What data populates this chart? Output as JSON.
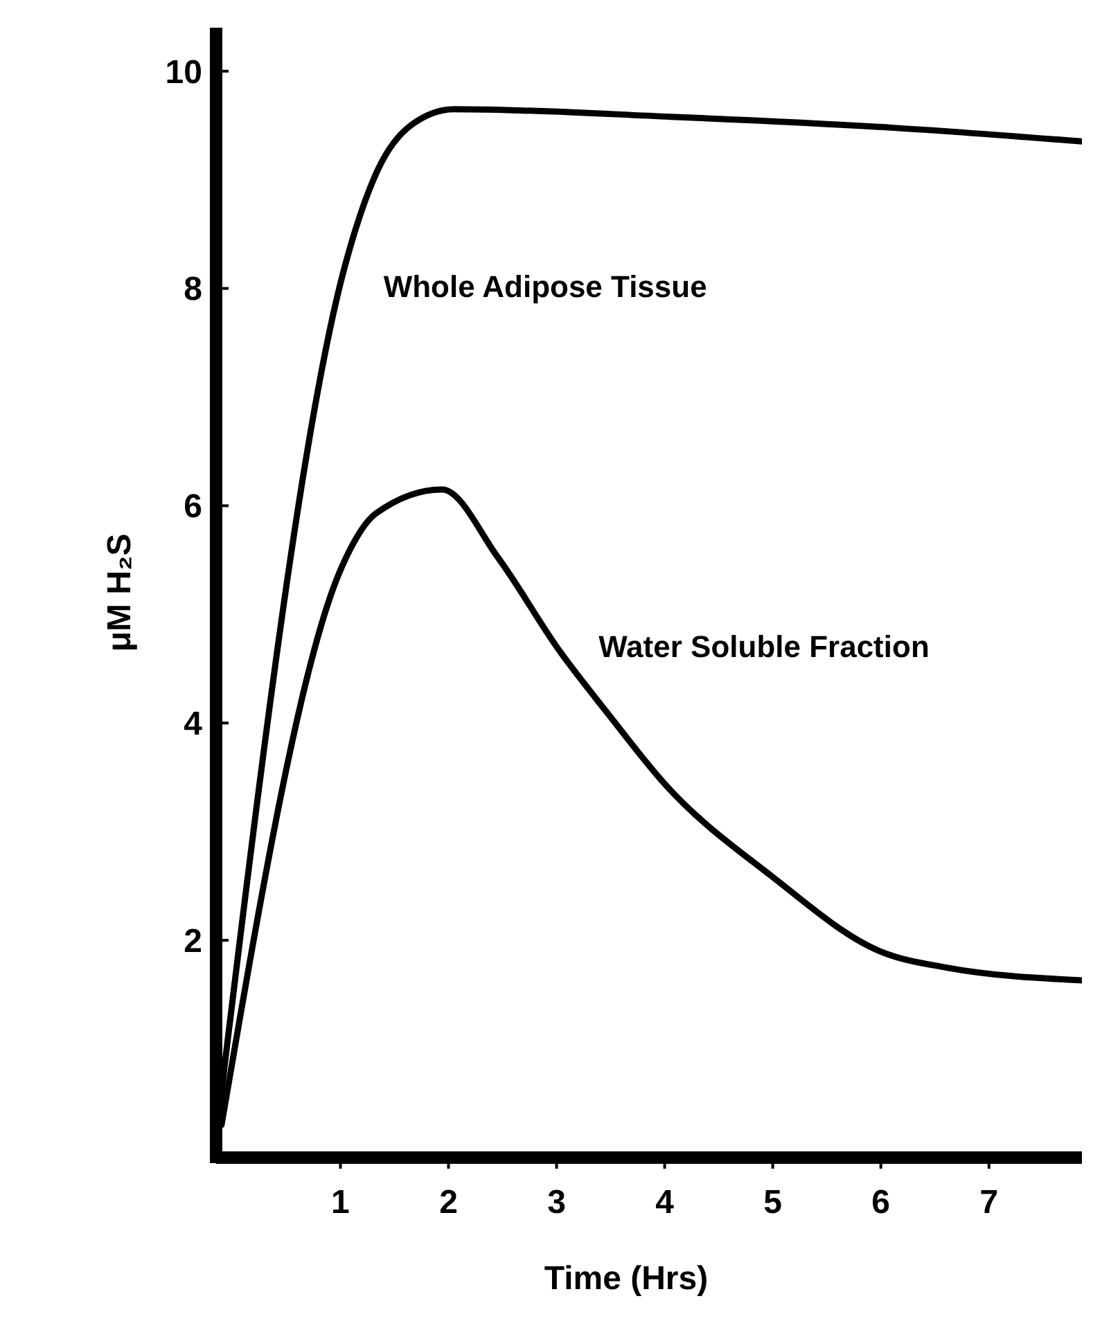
{
  "chart_data": {
    "type": "line",
    "xlabel": "Time (Hrs)",
    "ylabel": "μM H₂S",
    "xlim": [
      -0.15,
      7.95
    ],
    "xticks": [
      1,
      2,
      3,
      4,
      5,
      6,
      7
    ],
    "ylim": [
      0,
      10.4
    ],
    "yticks": [
      2,
      4,
      6,
      8,
      10
    ],
    "line_style": "solid",
    "series": [
      {
        "name": "Whole Adipose Tissue",
        "color": "#000000",
        "x": [
          -0.15,
          1.04,
          1.35,
          1.65,
          2.05,
          4.06,
          6.1,
          7.9
        ],
        "values": [
          0.2,
          8.2,
          9.1,
          9.5,
          9.65,
          9.58,
          9.48,
          9.35
        ]
      },
      {
        "name": "Water Soluble Fraction",
        "color": "#000000",
        "x": [
          -0.1,
          1.01,
          1.33,
          1.94,
          2.46,
          3.03,
          3.48,
          4.0,
          4.99,
          5.99,
          6.6,
          7.9
        ],
        "values": [
          0.3,
          5.43,
          5.93,
          6.15,
          5.52,
          4.66,
          4.08,
          3.44,
          2.59,
          1.9,
          1.75,
          1.63
        ]
      }
    ]
  }
}
